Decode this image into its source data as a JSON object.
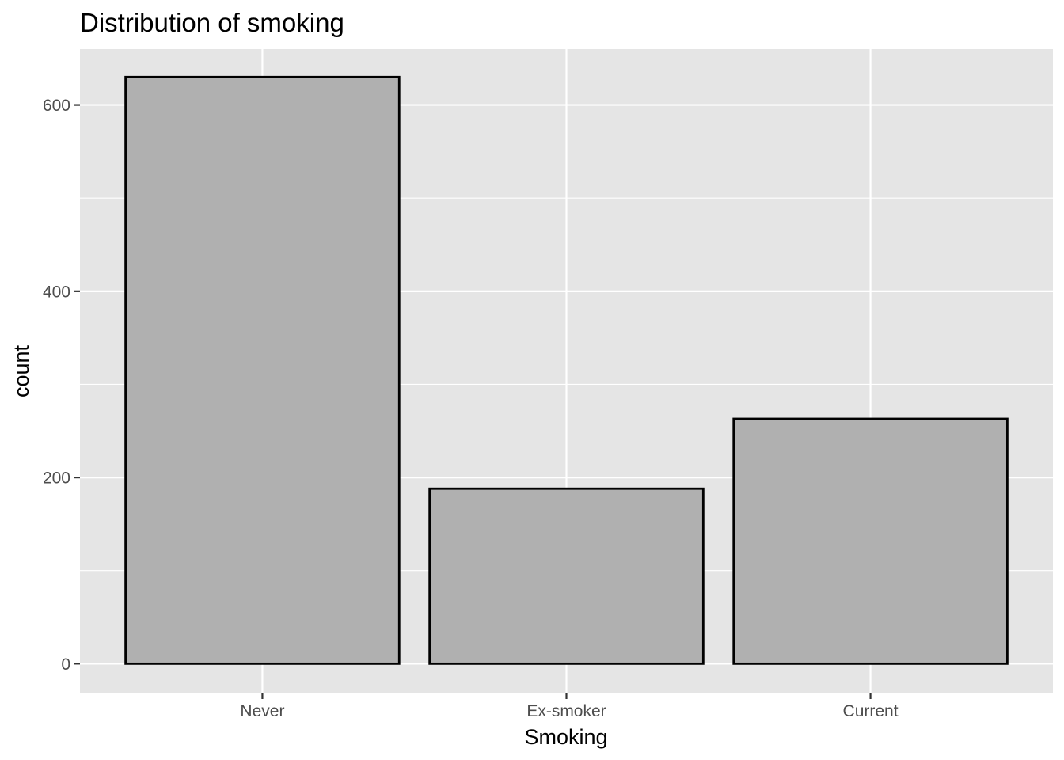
{
  "chart_data": {
    "type": "bar",
    "title": "Distribution of smoking",
    "xlabel": "Smoking",
    "ylabel": "count",
    "categories": [
      "Never",
      "Ex-smoker",
      "Current"
    ],
    "values": [
      630,
      188,
      263
    ],
    "ylim": [
      -32,
      660
    ],
    "yticks": [
      0,
      200,
      400,
      600
    ],
    "ytick_labels": [
      "0",
      "200",
      "400",
      "600"
    ],
    "grid": true,
    "legend": "none",
    "colors": {
      "panel_background": "#e5e5e5",
      "grid": "#ffffff",
      "bar_fill": "#b0b0b0",
      "bar_stroke": "#000000",
      "tick_mark": "#333333"
    }
  }
}
